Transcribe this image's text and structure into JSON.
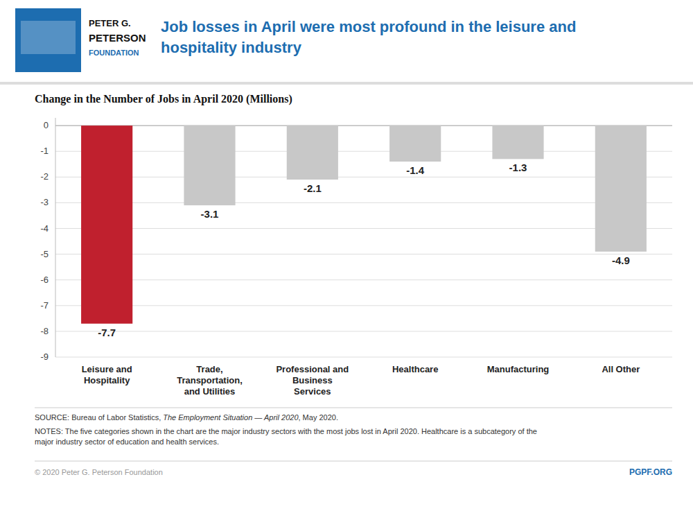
{
  "chart_data": {
    "type": "bar",
    "title": "Job losses in April were most profound in the leisure and\nhospitality industry",
    "subtitle": "Change in the Number of Jobs in April 2020 (Millions)",
    "categories": [
      "Leisure and\nHospitality",
      "Trade,\nTransportation,\nand Utilities",
      "Professional and\nBusiness\nServices",
      "Healthcare",
      "Manufacturing",
      "All Other"
    ],
    "values": [
      -7.7,
      -3.1,
      -2.1,
      -1.4,
      -1.3,
      -4.9
    ],
    "colors": [
      "#C0202E",
      "#C8C8C8",
      "#C8C8C8",
      "#C8C8C8",
      "#C8C8C8",
      "#C8C8C8"
    ],
    "data_labels": true,
    "ylim": [
      -9,
      0.3
    ],
    "yticks": [
      0,
      -1,
      -2,
      -3,
      -4,
      -5,
      -6,
      -7,
      -8,
      -9
    ],
    "grid": true,
    "logo": [
      "PETER G.",
      "PETERSON",
      "FOUNDATION"
    ],
    "source": [
      "SOURCE: Bureau of Labor Statistics, ",
      "The Employment Situation — April 2020",
      ", May 2020."
    ],
    "notes": "NOTES: The five categories shown in the chart are the major industry sectors with the most jobs lost in April 2020. Healthcare is a subcategory of the\nmajor industry sector of education and health services.",
    "copyright": "© 2020 Peter G. Peterson Foundation",
    "website": "PGPF.ORG"
  }
}
